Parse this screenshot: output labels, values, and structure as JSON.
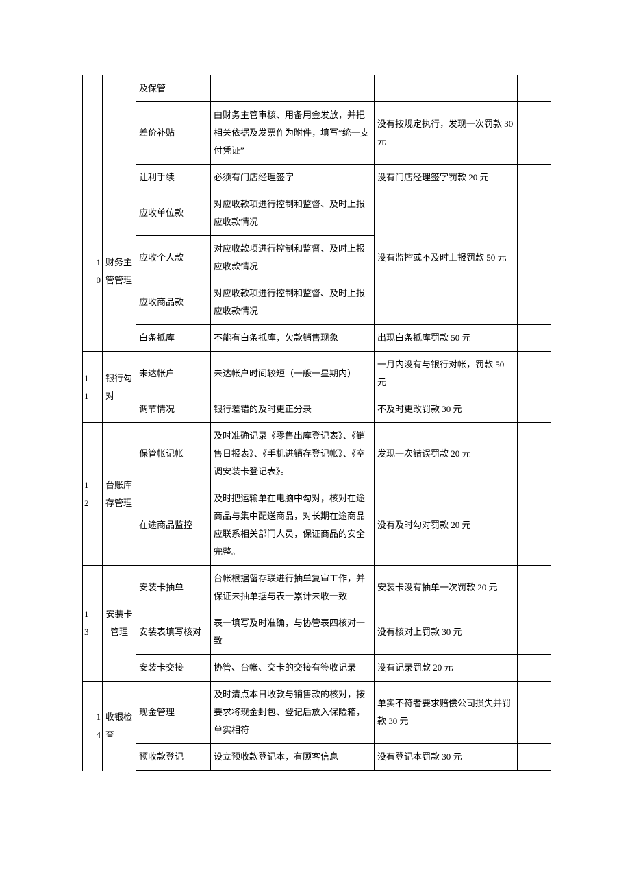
{
  "rows": [
    {
      "idx": "",
      "cat": "",
      "item": "及保管",
      "req": "",
      "pen": ""
    },
    {
      "idx": "",
      "cat": "",
      "item": "差价补贴",
      "req": "由财务主管审核、用备用金发放，并把相关依据及发票作为附件，填写“统一支付凭证”",
      "pen": "没有按规定执行，发现一次罚款 30 元"
    },
    {
      "idx": "",
      "cat": "",
      "item": "让利手续",
      "req": "必须有门店经理签字",
      "pen": "没有门店经理签字罚款 20 元"
    }
  ],
  "g10": {
    "idx": "1\n0",
    "cat": "财务主管管理",
    "items": [
      {
        "item": "应收单位款",
        "req": "对应收款项进行控制和监督、及时上报应收款情况"
      },
      {
        "item": "应收个人款",
        "req": "对应收款项进行控制和监督、及时上报应收款情况"
      },
      {
        "item": "应收商品款",
        "req": "对应收款项进行控制和监督、及时上报应收款情况"
      }
    ],
    "merged_pen": "没有监控或不及时上报罚款 50 元",
    "last": {
      "item": "白条抵库",
      "req": "不能有白条抵库，欠款销售现象",
      "pen": "出现白条抵库罚款 50 元"
    }
  },
  "g11": {
    "idx": "1\n1",
    "cat": "银行勾对",
    "rows": [
      {
        "item": "未达帐户",
        "req": "未达帐户时间较短（一般一星期内）",
        "pen": "一月内没有与银行对帐，罚款 50 元"
      },
      {
        "item": "调节情况",
        "req": "银行差错的及时更正分录",
        "pen": "不及时更改罚款 30 元"
      }
    ]
  },
  "g12": {
    "idx": "1\n2",
    "cat": "台账库存管理",
    "rows": [
      {
        "item": "保管帐记帐",
        "req": "及时准确记录《零售出库登记表》、《销售日报表》、《手机进销存登记帐》、《空调安装卡登记表》。",
        "pen": "发现一次错误罚款 20 元"
      },
      {
        "item": "在途商品监控",
        "req": "及时把运输单在电脑中勾对，核对在途商品与集中配送商品，对长期在途商品应联系相关部门人员，保证商品的安全完整。",
        "pen": "没有及时勾对罚款 20 元"
      }
    ]
  },
  "g13": {
    "idx": "1\n3",
    "cat": "安装卡管理",
    "rows": [
      {
        "item": "安装卡抽单",
        "req": "台帐根据留存联进行抽单复审工作，并保证未抽单据与表一累计未收一致",
        "pen": "安装卡没有抽单一次罚款 20 元"
      },
      {
        "item": "安装表填写核对",
        "req": "表一填写及时准确，与协管表四核对一致",
        "pen": "没有核对上罚款 30 元"
      },
      {
        "item": "安装卡交接",
        "req": "协管、台帐、交卡的交接有签收记录",
        "pen": "没有记录罚款 20 元"
      }
    ]
  },
  "g14": {
    "idx": "1\n4",
    "cat": "收银检查",
    "rows": [
      {
        "item": "现金管理",
        "req": "及时清点本日收款与销售款的核对，按要求将现金封包、登记后放入保险箱，单实相符",
        "pen": "单实不符者要求赔偿公司损失并罚款 30 元"
      },
      {
        "item": "预收款登记",
        "req": "设立预收款登记本，有顾客信息",
        "pen": "没有登记本罚款 30 元"
      }
    ]
  }
}
